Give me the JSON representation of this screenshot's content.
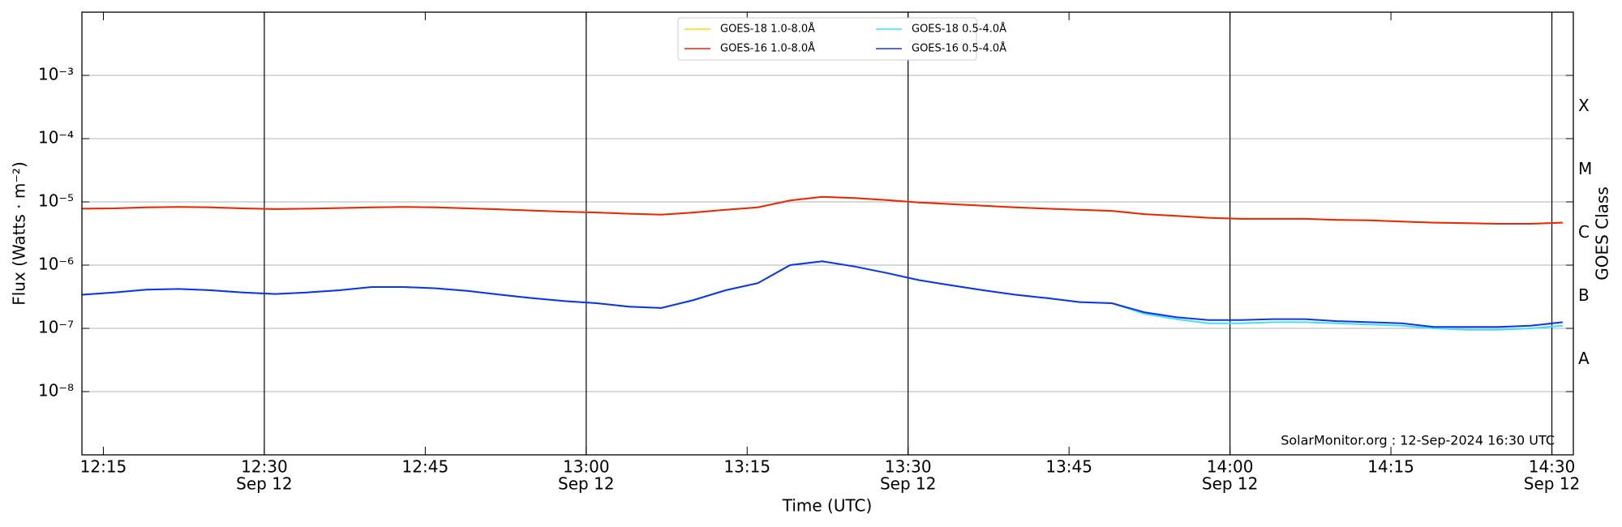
{
  "chart_data": {
    "type": "line",
    "xlabel": "Time (UTC)",
    "ylabel": "Flux (Watts · m⁻²)",
    "y2label": "GOES Class",
    "annotation": "SolarMonitor.org : 12-Sep-2024 16:30 UTC",
    "log_y": true,
    "grid": true,
    "legend": "upper center",
    "xlim": [
      "12:13",
      "14:32"
    ],
    "ylim": [
      1e-09,
      0.01
    ],
    "xticks": [
      {
        "value": "12:15",
        "label": "12:15"
      },
      {
        "value": "12:30",
        "label": "12:30",
        "sublabel": "Sep 12"
      },
      {
        "value": "12:45",
        "label": "12:45"
      },
      {
        "value": "13:00",
        "label": "13:00",
        "sublabel": "Sep 12"
      },
      {
        "value": "13:15",
        "label": "13:15"
      },
      {
        "value": "13:30",
        "label": "13:30",
        "sublabel": "Sep 12"
      },
      {
        "value": "13:45",
        "label": "13:45"
      },
      {
        "value": "14:00",
        "label": "14:00",
        "sublabel": "Sep 12"
      },
      {
        "value": "14:15",
        "label": "14:15"
      },
      {
        "value": "14:30",
        "label": "14:30",
        "sublabel": "Sep 12"
      }
    ],
    "yticks": [
      {
        "value": 0.001,
        "label": "10⁻³"
      },
      {
        "value": 0.0001,
        "label": "10⁻⁴"
      },
      {
        "value": 1e-05,
        "label": "10⁻⁵"
      },
      {
        "value": 1e-06,
        "label": "10⁻⁶"
      },
      {
        "value": 1e-07,
        "label": "10⁻⁷"
      },
      {
        "value": 1e-08,
        "label": "10⁻⁸"
      }
    ],
    "class_labels": [
      {
        "value": 0.00032,
        "label": "X"
      },
      {
        "value": 3.2e-05,
        "label": "M"
      },
      {
        "value": 3.2e-06,
        "label": "C"
      },
      {
        "value": 3.2e-07,
        "label": "B"
      },
      {
        "value": 3.2e-08,
        "label": "A"
      }
    ],
    "x": [
      "12:13",
      "12:16",
      "12:19",
      "12:22",
      "12:25",
      "12:28",
      "12:31",
      "12:34",
      "12:37",
      "12:40",
      "12:43",
      "12:46",
      "12:49",
      "12:52",
      "12:55",
      "12:58",
      "13:01",
      "13:04",
      "13:07",
      "13:10",
      "13:13",
      "13:16",
      "13:19",
      "13:22",
      "13:25",
      "13:28",
      "13:31",
      "13:34",
      "13:37",
      "13:40",
      "13:43",
      "13:46",
      "13:49",
      "13:52",
      "13:55",
      "13:58",
      "14:01",
      "14:04",
      "14:07",
      "14:10",
      "14:13",
      "14:16",
      "14:19",
      "14:22",
      "14:25",
      "14:28",
      "14:31"
    ],
    "series": [
      {
        "name": "GOES-18 1.0-8.0Å",
        "color": "#ffd700",
        "values": [
          7.8e-06,
          7.9e-06,
          8.2e-06,
          8.3e-06,
          8.2e-06,
          7.9e-06,
          7.7e-06,
          7.8e-06,
          8e-06,
          8.2e-06,
          8.3e-06,
          8.2e-06,
          7.9e-06,
          7.6e-06,
          7.3e-06,
          7e-06,
          6.8e-06,
          6.5e-06,
          6.3e-06,
          6.8e-06,
          7.5e-06,
          8.2e-06,
          1.05e-05,
          1.2e-05,
          1.15e-05,
          1.07e-05,
          9.8e-06,
          9.2e-06,
          8.7e-06,
          8.2e-06,
          7.8e-06,
          7.5e-06,
          7.2e-06,
          6.4e-06,
          6e-06,
          5.6e-06,
          5.4e-06,
          5.4e-06,
          5.4e-06,
          5.2e-06,
          5.1e-06,
          4.9e-06,
          4.7e-06,
          4.6e-06,
          4.5e-06,
          4.5e-06,
          4.7e-06
        ]
      },
      {
        "name": "GOES-16 1.0-8.0Å",
        "color": "#e8260c",
        "values": [
          7.8e-06,
          7.9e-06,
          8.2e-06,
          8.3e-06,
          8.2e-06,
          7.9e-06,
          7.7e-06,
          7.8e-06,
          8e-06,
          8.2e-06,
          8.3e-06,
          8.2e-06,
          7.9e-06,
          7.6e-06,
          7.3e-06,
          7e-06,
          6.8e-06,
          6.5e-06,
          6.3e-06,
          6.8e-06,
          7.5e-06,
          8.2e-06,
          1.05e-05,
          1.2e-05,
          1.15e-05,
          1.07e-05,
          9.8e-06,
          9.2e-06,
          8.7e-06,
          8.2e-06,
          7.8e-06,
          7.5e-06,
          7.2e-06,
          6.4e-06,
          6e-06,
          5.6e-06,
          5.4e-06,
          5.4e-06,
          5.4e-06,
          5.2e-06,
          5.1e-06,
          4.9e-06,
          4.7e-06,
          4.6e-06,
          4.5e-06,
          4.5e-06,
          4.7e-06
        ]
      },
      {
        "name": "GOES-18 0.5-4.0Å",
        "color": "#3fe0f0",
        "values": [
          3.4e-07,
          3.7e-07,
          4.1e-07,
          4.2e-07,
          4e-07,
          3.7e-07,
          3.5e-07,
          3.7e-07,
          4e-07,
          4.5e-07,
          4.5e-07,
          4.3e-07,
          3.9e-07,
          3.4e-07,
          3e-07,
          2.7e-07,
          2.5e-07,
          2.2e-07,
          2.1e-07,
          2.8e-07,
          4e-07,
          5.2e-07,
          1e-06,
          1.15e-06,
          9.5e-07,
          7.5e-07,
          5.8e-07,
          4.8e-07,
          4e-07,
          3.4e-07,
          3e-07,
          2.6e-07,
          2.5e-07,
          1.7e-07,
          1.4e-07,
          1.2e-07,
          1.2e-07,
          1.25e-07,
          1.25e-07,
          1.2e-07,
          1.15e-07,
          1.1e-07,
          1e-07,
          9.5e-08,
          9.5e-08,
          1e-07,
          1.1e-07
        ]
      },
      {
        "name": "GOES-16 0.5-4.0Å",
        "color": "#1033e8",
        "values": [
          3.4e-07,
          3.7e-07,
          4.1e-07,
          4.2e-07,
          4e-07,
          3.7e-07,
          3.5e-07,
          3.7e-07,
          4e-07,
          4.5e-07,
          4.5e-07,
          4.3e-07,
          3.9e-07,
          3.4e-07,
          3e-07,
          2.7e-07,
          2.5e-07,
          2.2e-07,
          2.1e-07,
          2.8e-07,
          4e-07,
          5.2e-07,
          1e-06,
          1.15e-06,
          9.5e-07,
          7.5e-07,
          5.8e-07,
          4.8e-07,
          4e-07,
          3.4e-07,
          3e-07,
          2.6e-07,
          2.5e-07,
          1.8e-07,
          1.5e-07,
          1.35e-07,
          1.35e-07,
          1.4e-07,
          1.4e-07,
          1.3e-07,
          1.25e-07,
          1.2e-07,
          1.05e-07,
          1.05e-07,
          1.05e-07,
          1.1e-07,
          1.25e-07
        ]
      }
    ]
  }
}
